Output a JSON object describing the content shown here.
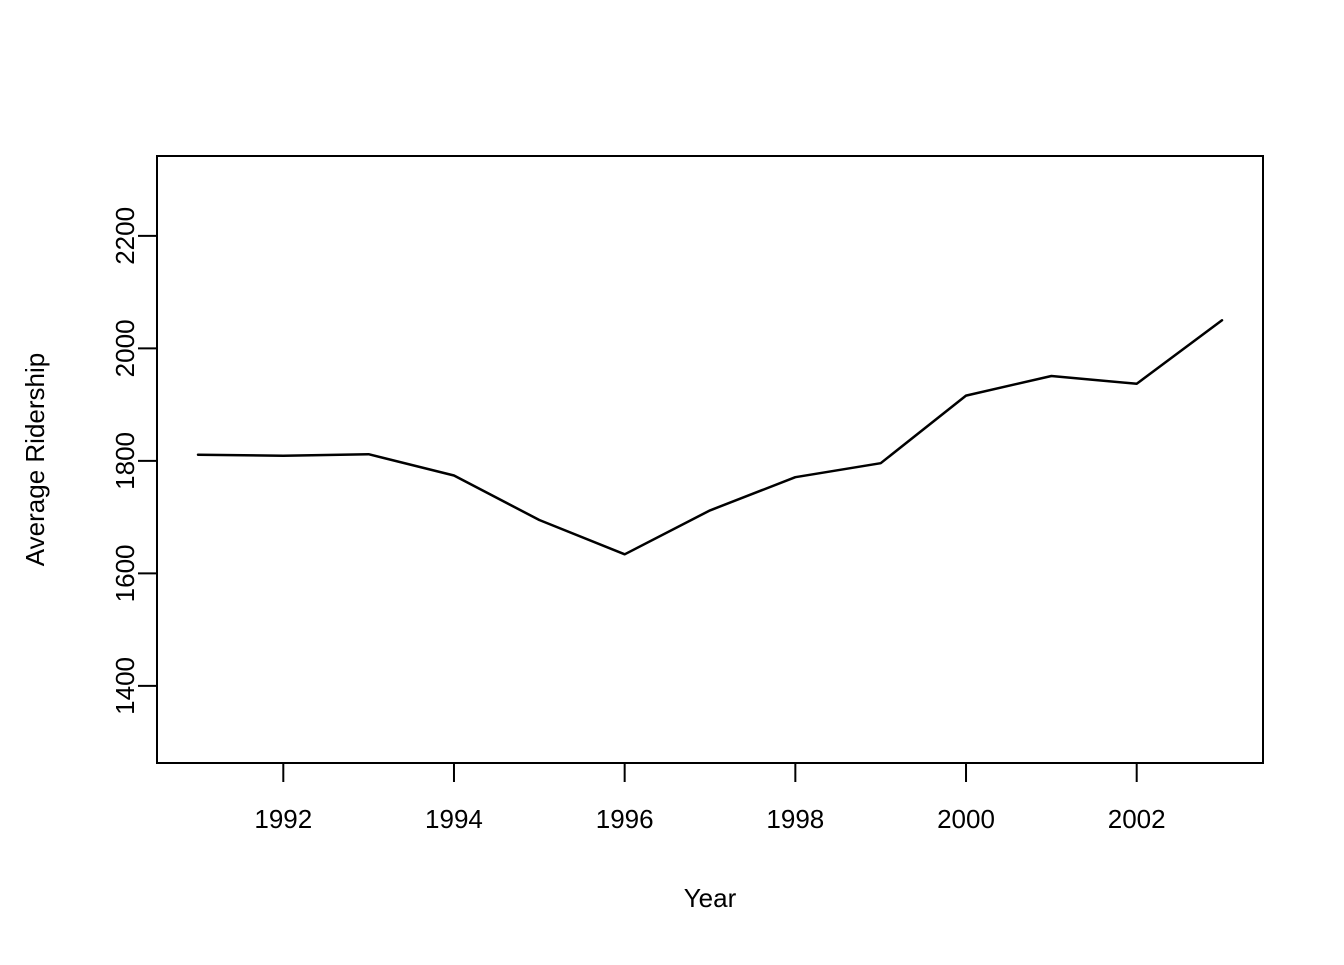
{
  "figure": {
    "background": "#ffffff",
    "foreground": "#000000"
  },
  "chart_data": {
    "type": "line",
    "title": "",
    "xlabel": "Year",
    "ylabel": "Average Ridership",
    "x": [
      1991,
      1992,
      1993,
      1994,
      1995,
      1996,
      1997,
      1998,
      1999,
      2000,
      2001,
      2002,
      2003
    ],
    "series": [
      {
        "name": "average-ridership",
        "values": [
          1811,
          1809,
          1812,
          1774,
          1695,
          1634,
          1712,
          1771,
          1796,
          1916,
          1951,
          1937,
          2050
        ],
        "color": "#000000"
      }
    ],
    "x_ticks": [
      1992,
      1994,
      1996,
      1998,
      2000,
      2002
    ],
    "y_ticks": [
      1400,
      1600,
      1800,
      2000,
      2200
    ],
    "xlim": [
      1990.52,
      2003.48
    ],
    "ylim": [
      1263,
      2342
    ],
    "grid": false,
    "legend": "none",
    "box": true
  }
}
